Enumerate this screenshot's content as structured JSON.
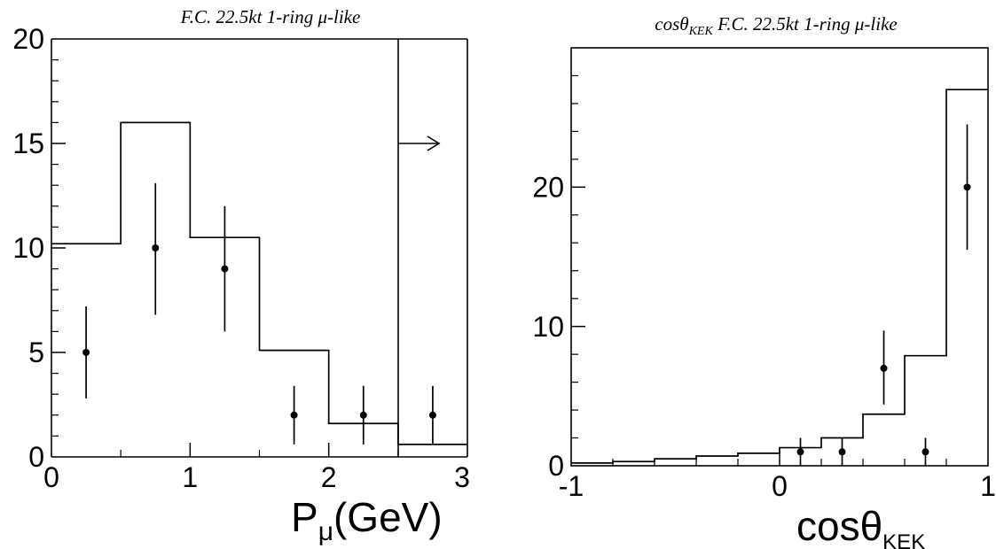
{
  "chart_data": [
    {
      "type": "histogram-with-points",
      "title": "F.C. 22.5kt 1-ring μ-like",
      "xlabel": "P",
      "xlabel_sub": "μ",
      "xlabel_unit": "(GeV)",
      "ylabel": "",
      "xlim": [
        0,
        3
      ],
      "ylim": [
        0,
        20
      ],
      "x_ticks": [
        "0",
        "1",
        "2",
        "3"
      ],
      "y_ticks": [
        "0",
        "5",
        "10",
        "15",
        "20"
      ],
      "histogram": {
        "bin_edges": [
          0,
          0.5,
          1.0,
          1.5,
          2.0,
          2.5,
          3.0
        ],
        "values": [
          10.2,
          16.0,
          10.5,
          5.1,
          1.6,
          0.6
        ]
      },
      "points": {
        "x": [
          0.25,
          0.75,
          1.25,
          1.75,
          2.25,
          2.75
        ],
        "y": [
          5,
          10,
          9,
          2,
          2,
          2
        ],
        "err_low": [
          2.2,
          3.2,
          3.0,
          1.4,
          1.4,
          1.4
        ],
        "err_high": [
          2.2,
          3.1,
          3.0,
          1.4,
          1.4,
          1.4
        ]
      },
      "overflow_marker": {
        "x_start": 2.5,
        "x_end": 2.75,
        "y": 15,
        "symbol": "arrow-right"
      }
    },
    {
      "type": "histogram-with-points",
      "title_prefix": "cosθ",
      "title_sub": "KEK",
      "title_suffix": " F.C. 22.5kt 1-ring μ-like",
      "xlabel": "cosθ",
      "xlabel_sub": "KEK",
      "ylabel": "",
      "xlim": [
        -1,
        1
      ],
      "ylim": [
        0,
        30
      ],
      "x_ticks": [
        "-1",
        "0",
        "1"
      ],
      "y_ticks": [
        "0",
        "10",
        "20"
      ],
      "histogram": {
        "bin_edges": [
          -1.0,
          -0.8,
          -0.6,
          -0.4,
          -0.2,
          0.0,
          0.2,
          0.4,
          0.6,
          0.8,
          1.0
        ],
        "values": [
          0.2,
          0.3,
          0.5,
          0.7,
          0.9,
          1.3,
          2.0,
          3.7,
          7.9,
          27.0
        ]
      },
      "points": {
        "x": [
          0.1,
          0.3,
          0.5,
          0.7,
          0.9
        ],
        "y": [
          1,
          1,
          7,
          1,
          20
        ],
        "err_low": [
          1,
          1,
          2.6,
          1,
          4.5
        ],
        "err_high": [
          1,
          1,
          2.7,
          1,
          4.5
        ]
      }
    }
  ]
}
